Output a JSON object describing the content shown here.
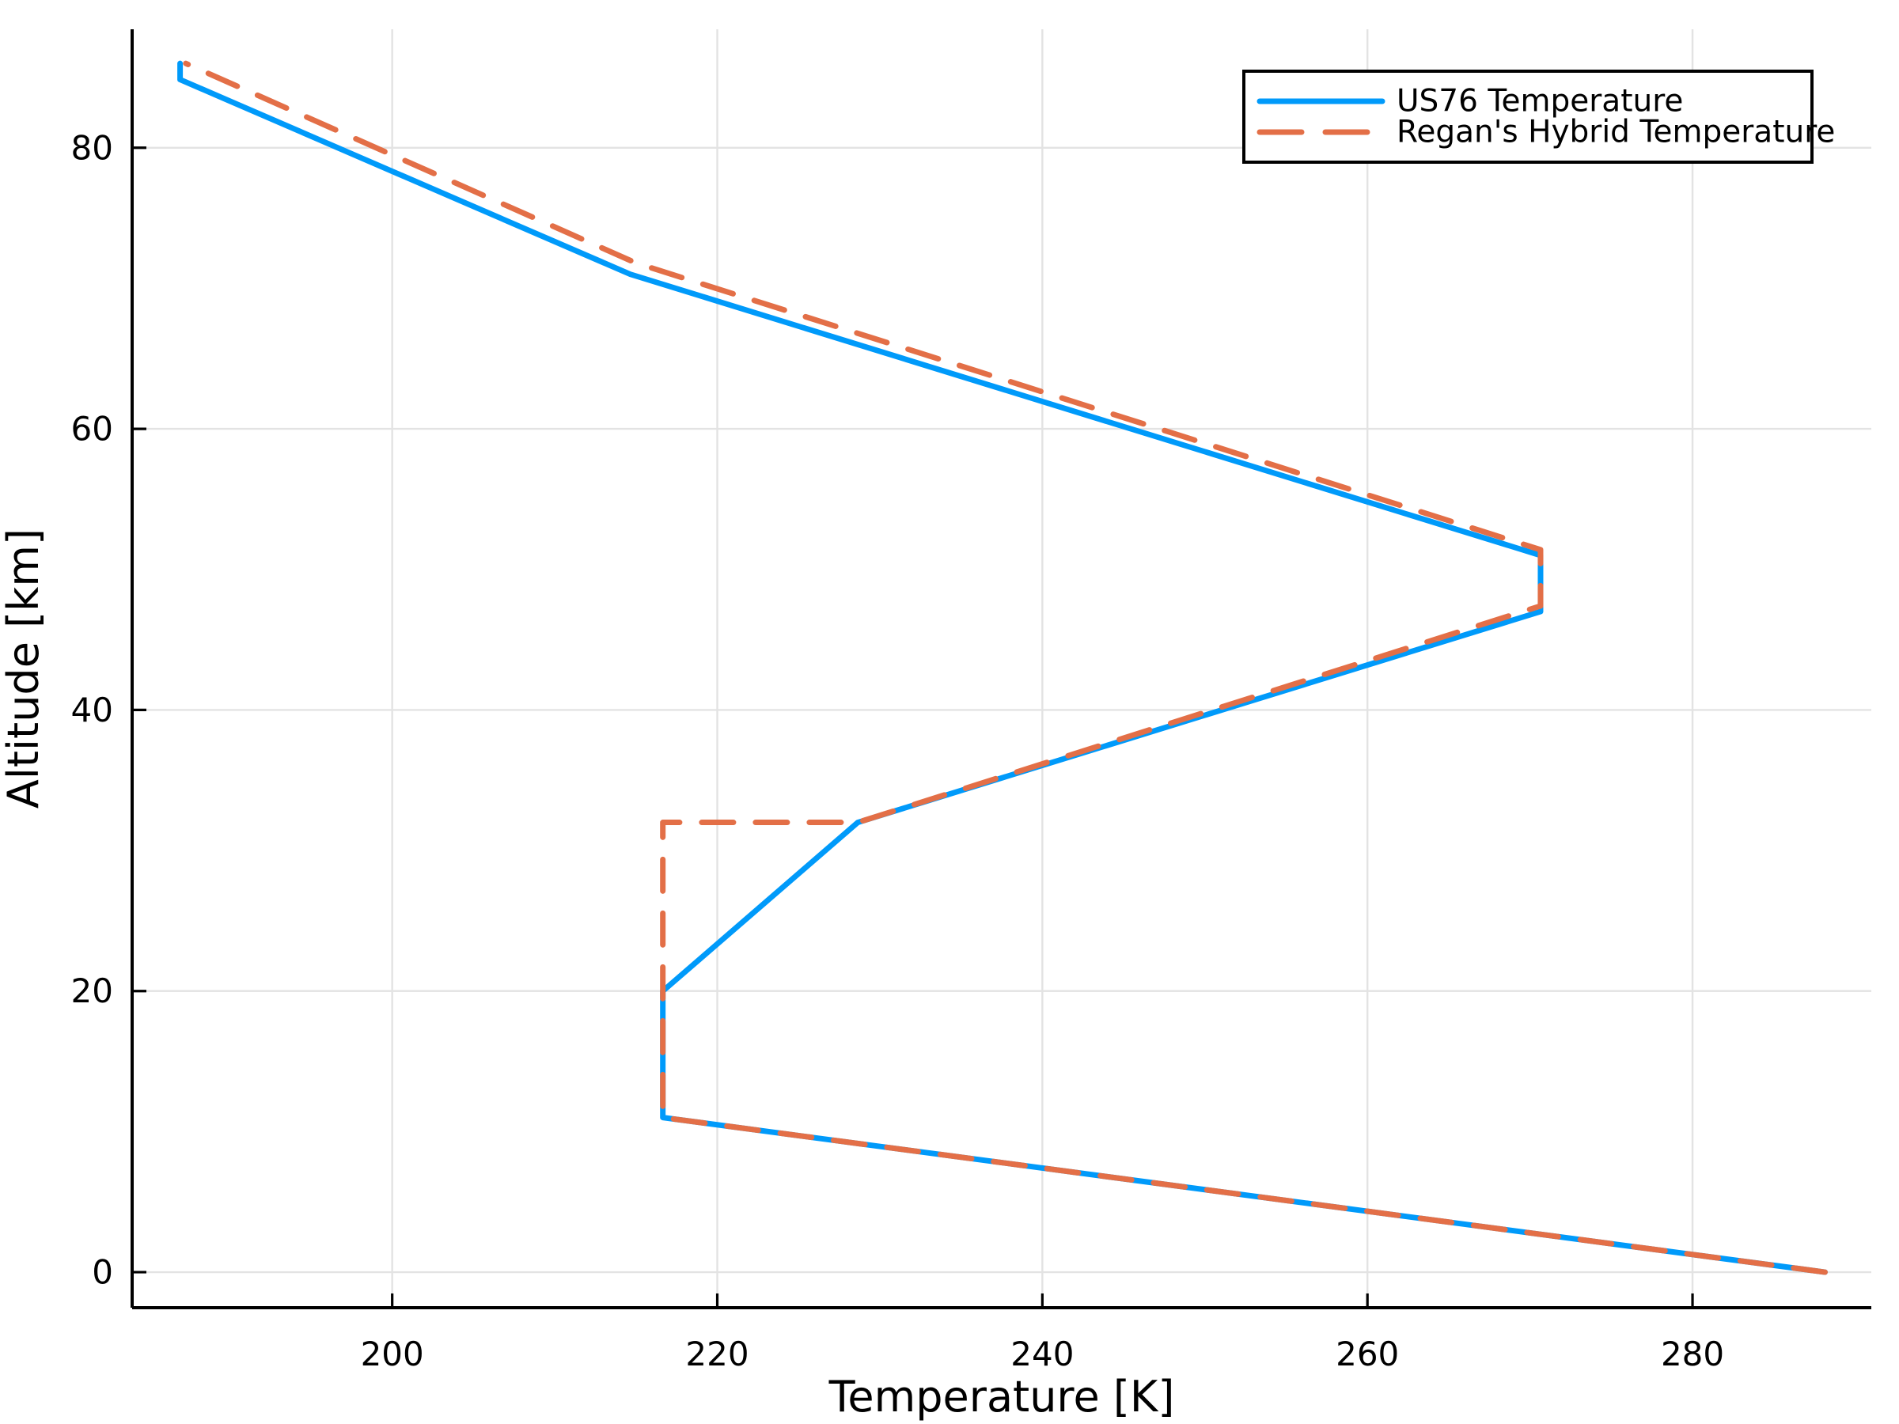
{
  "chart_data": {
    "type": "line",
    "title": "",
    "xlabel": "Temperature [K]",
    "ylabel": "Altitude [km]",
    "xlim": [
      184.0,
      291.0
    ],
    "ylim": [
      -2.53,
      88.43
    ],
    "xticks": [
      200,
      220,
      240,
      260,
      280
    ],
    "yticks": [
      0,
      20,
      40,
      60,
      80
    ],
    "grid": true,
    "legend_position": "top-right",
    "series": [
      {
        "name": "US76 Temperature",
        "color": "#009AFA",
        "line_style": "solid",
        "x": [
          288.15,
          216.65,
          216.65,
          228.65,
          270.65,
          270.65,
          214.65,
          186.95,
          186.95
        ],
        "y": [
          0,
          11,
          20,
          32,
          47,
          51,
          71,
          84.852,
          86
        ]
      },
      {
        "name": "Regan's Hybrid Temperature",
        "color": "#E36F47",
        "line_style": "dashed",
        "x": [
          288.15,
          216.65,
          216.65,
          228.65,
          270.65,
          270.65,
          215.0,
          187.3
        ],
        "y": [
          0,
          11,
          32,
          32,
          47.4,
          51.4,
          71.8,
          86
        ]
      }
    ],
    "colors": {
      "grid": "#E3E3E3",
      "axis": "#000000",
      "background": "#FFFFFF",
      "text": "#000000"
    }
  }
}
